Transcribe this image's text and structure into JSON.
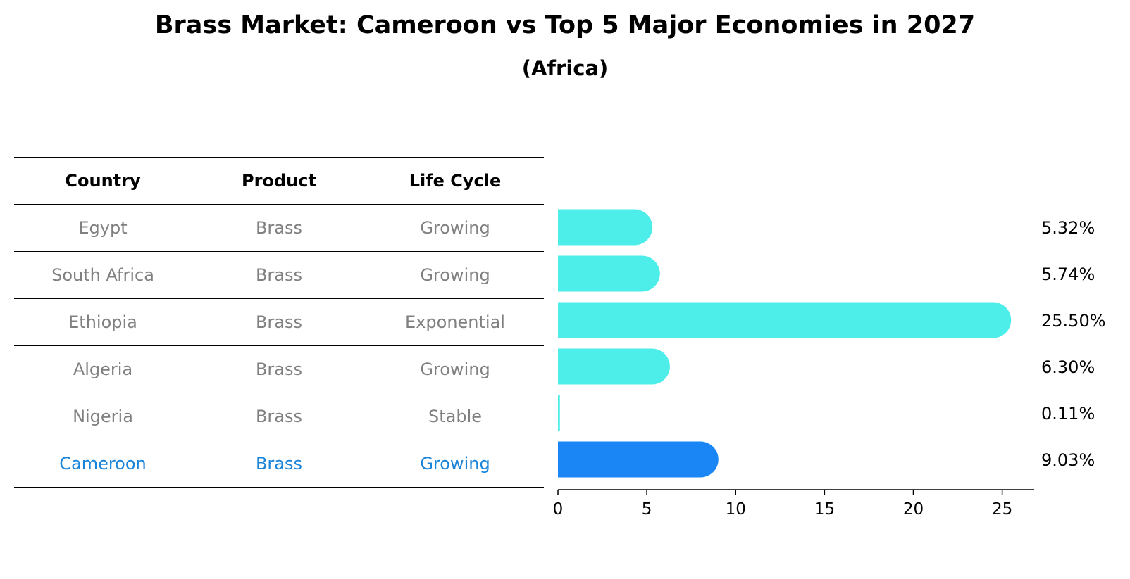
{
  "title": "Brass Market: Cameroon vs Top 5 Major Economies in 2027",
  "subtitle": "(Africa)",
  "table": {
    "headers": [
      "Country",
      "Product",
      "Life Cycle"
    ],
    "rows": [
      {
        "country": "Egypt",
        "product": "Brass",
        "life_cycle": "Growing"
      },
      {
        "country": "South Africa",
        "product": "Brass",
        "life_cycle": "Growing"
      },
      {
        "country": "Ethiopia",
        "product": "Brass",
        "life_cycle": "Exponential"
      },
      {
        "country": "Algeria",
        "product": "Brass",
        "life_cycle": "Growing"
      },
      {
        "country": "Nigeria",
        "product": "Brass",
        "life_cycle": "Stable"
      },
      {
        "country": "Cameroon",
        "product": "Brass",
        "life_cycle": "Growing"
      }
    ],
    "highlight_row": "Cameroon",
    "highlight_color": "#1a84d8",
    "text_color": "#808080"
  },
  "chart_data": {
    "type": "bar",
    "orientation": "horizontal",
    "categories": [
      "Egypt",
      "South Africa",
      "Ethiopia",
      "Algeria",
      "Nigeria",
      "Cameroon"
    ],
    "values": [
      5.32,
      5.74,
      25.5,
      6.3,
      0.11,
      9.03
    ],
    "value_labels": [
      "5.32%",
      "5.74%",
      "25.50%",
      "6.30%",
      "0.11%",
      "9.03%"
    ],
    "xlim": [
      0,
      26.8
    ],
    "xticks": [
      0,
      5,
      10,
      15,
      20,
      25
    ],
    "colors": {
      "default": "#4deeea",
      "highlight": "#1a85f5"
    },
    "highlight_category": "Cameroon",
    "grid": false
  }
}
